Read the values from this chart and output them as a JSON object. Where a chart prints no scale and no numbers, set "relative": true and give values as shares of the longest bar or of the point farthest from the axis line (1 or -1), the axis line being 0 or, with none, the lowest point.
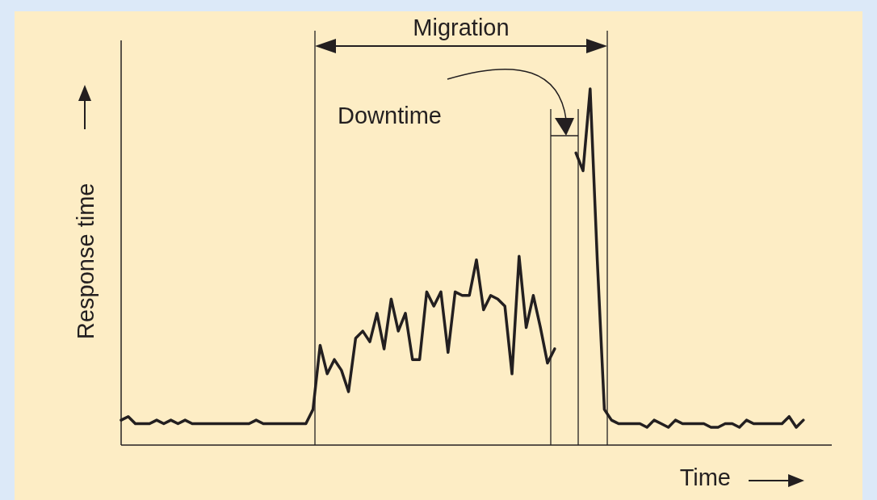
{
  "chart_data": {
    "type": "line",
    "relative": true,
    "xlabel": "Time",
    "ylabel": "Response time",
    "line_style": "solid",
    "categories": [
      null,
      null,
      null,
      null,
      null,
      null,
      null,
      null,
      null,
      null,
      null,
      null,
      null,
      null,
      null,
      null,
      null,
      null,
      null,
      null,
      null,
      null,
      null,
      null,
      null,
      null,
      null,
      null,
      null,
      null,
      null,
      null,
      null,
      null,
      null,
      null,
      null,
      null,
      null,
      null,
      null,
      null,
      null,
      null,
      null,
      null,
      null,
      null,
      null,
      null,
      null,
      null,
      null,
      null,
      null,
      null,
      null,
      null,
      null,
      null,
      null,
      null,
      null,
      null,
      null,
      null,
      null,
      null,
      null,
      null,
      null,
      null,
      null,
      null,
      null,
      null,
      null,
      null,
      null,
      null,
      null,
      null,
      null,
      null,
      null,
      null,
      null,
      null,
      null,
      null,
      null,
      null,
      null,
      null,
      null,
      null,
      null,
      null,
      null,
      null,
      null
    ],
    "series": [
      {
        "color": "#231f20",
        "values": [
          0.07,
          0.08,
          0.06,
          0.06,
          0.06,
          0.07,
          0.06,
          0.07,
          0.06,
          0.07,
          0.06,
          0.06,
          0.06,
          0.06,
          0.06,
          0.06,
          0.06,
          0.06,
          0.06,
          0.07,
          0.06,
          0.06,
          0.06,
          0.06,
          0.06,
          0.06,
          0.06,
          0.1,
          0.28,
          0.2,
          0.24,
          0.21,
          0.15,
          0.3,
          0.32,
          0.29,
          0.37,
          0.27,
          0.41,
          0.32,
          0.37,
          0.24,
          0.24,
          0.43,
          0.39,
          0.43,
          0.26,
          0.43,
          0.42,
          0.42,
          0.52,
          0.38,
          0.42,
          0.41,
          0.39,
          0.2,
          0.53,
          0.33,
          0.42,
          0.33,
          0.23,
          0.27,
          null,
          null,
          null,
          null,
          null,
          null,
          null,
          null,
          null,
          null,
          null,
          null,
          null,
          null,
          null,
          null,
          null,
          null,
          null,
          null,
          null,
          null,
          null,
          null,
          null,
          null,
          null,
          null,
          null,
          null,
          null,
          null,
          null,
          null,
          null,
          null,
          null,
          null,
          null
        ]
      },
      {
        "color": "#231f20",
        "values": [
          null,
          null,
          null,
          null,
          null,
          null,
          null,
          null,
          null,
          null,
          null,
          null,
          null,
          null,
          null,
          null,
          null,
          null,
          null,
          null,
          null,
          null,
          null,
          null,
          null,
          null,
          null,
          null,
          null,
          null,
          null,
          null,
          null,
          null,
          null,
          null,
          null,
          null,
          null,
          null,
          null,
          null,
          null,
          null,
          null,
          null,
          null,
          null,
          null,
          null,
          null,
          null,
          null,
          null,
          null,
          null,
          null,
          null,
          null,
          null,
          null,
          null,
          null,
          null,
          0.82,
          0.77,
          1,
          0.52,
          0.1,
          0.07,
          0.06,
          0.06,
          0.06,
          0.06,
          0.05,
          0.07,
          0.06,
          0.05,
          0.07,
          0.06,
          0.06,
          0.06,
          0.06,
          0.05,
          0.05,
          0.06,
          0.06,
          0.05,
          0.07,
          0.06,
          0.06,
          0.06,
          0.06,
          0.06,
          0.08,
          0.05,
          0.07,
          null,
          null,
          null,
          null
        ]
      }
    ],
    "annotations": [
      "Migration",
      "Downtime"
    ]
  }
}
